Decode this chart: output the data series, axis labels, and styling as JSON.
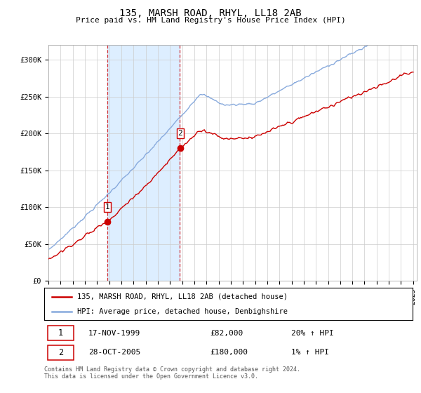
{
  "title": "135, MARSH ROAD, RHYL, LL18 2AB",
  "subtitle": "Price paid vs. HM Land Registry's House Price Index (HPI)",
  "sale1_date": "17-NOV-1999",
  "sale1_price": 82000,
  "sale1_label": "1",
  "sale1_hpi": "20% ↑ HPI",
  "sale2_date": "28-OCT-2005",
  "sale2_price": 180000,
  "sale2_label": "2",
  "sale2_hpi": "1% ↑ HPI",
  "legend_line1": "135, MARSH ROAD, RHYL, LL18 2AB (detached house)",
  "legend_line2": "HPI: Average price, detached house, Denbighshire",
  "footer": "Contains HM Land Registry data © Crown copyright and database right 2024.\nThis data is licensed under the Open Government Licence v3.0.",
  "price_color": "#cc0000",
  "hpi_color": "#88aadd",
  "shade_color": "#ddeeff",
  "vline_color": "#cc0000",
  "background_color": "#ffffff",
  "ylim": [
    0,
    320000
  ],
  "yticks": [
    0,
    50000,
    100000,
    150000,
    200000,
    250000,
    300000
  ],
  "ytick_labels": [
    "£0",
    "£50K",
    "£100K",
    "£150K",
    "£200K",
    "£250K",
    "£300K"
  ],
  "t_sale1": 1999.875,
  "t_sale2": 2005.792
}
